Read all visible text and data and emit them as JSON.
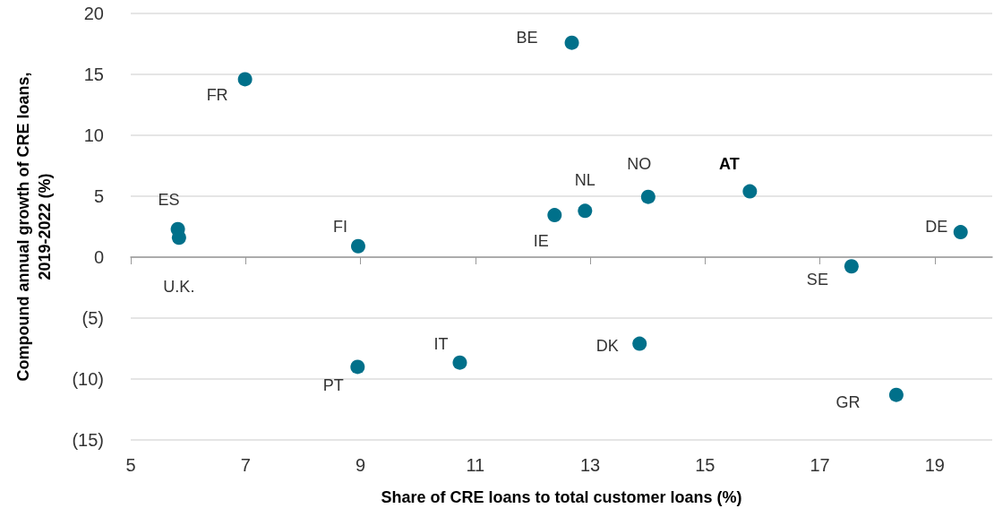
{
  "chart_data": {
    "type": "scatter",
    "xlabel": "Share of CRE loans to total customer loans (%)",
    "ylabel": "Compound annual growth of CRE loans,\n2019-2022 (%)",
    "x": [
      5.82,
      5.84,
      8.96,
      8.95,
      10.73,
      6.99,
      12.68,
      12.38,
      12.91,
      14.01,
      15.78,
      19.45,
      17.55,
      13.86,
      18.33
    ],
    "series": [
      {
        "color": "#00708a",
        "values": [
          2.3,
          1.6,
          0.9,
          -9.0,
          -8.65,
          14.6,
          17.6,
          3.45,
          3.8,
          4.95,
          5.4,
          2.05,
          -0.75,
          -7.1,
          -11.3
        ]
      }
    ],
    "xlim": [
      5,
      20
    ],
    "xticks": [
      5,
      7,
      9,
      11,
      13,
      15,
      17,
      19
    ],
    "ylim": [
      -15,
      20
    ],
    "yticks": [
      {
        "value": -15,
        "label": "(15)"
      },
      {
        "value": -10,
        "label": "(10)"
      },
      {
        "value": -5,
        "label": "(5)"
      },
      0,
      5,
      10,
      15,
      20
    ],
    "grid": "y",
    "marker": "circle",
    "annotations": [
      {
        "text": "ES",
        "x": 5.82,
        "y": 2.3
      },
      {
        "text": "U.K.",
        "x": 5.84,
        "y": 1.6
      },
      {
        "text": "FI",
        "x": 8.96,
        "y": 0.9
      },
      {
        "text": "PT",
        "x": 8.95,
        "y": -9.0
      },
      {
        "text": "IT",
        "x": 10.73,
        "y": -8.65
      },
      {
        "text": "FR",
        "x": 6.99,
        "y": 14.6
      },
      {
        "text": "BE",
        "x": 12.68,
        "y": 17.6
      },
      {
        "text": "IE",
        "x": 12.38,
        "y": 3.45
      },
      {
        "text": "NL",
        "x": 12.91,
        "y": 3.8
      },
      {
        "text": "NO",
        "x": 14.01,
        "y": 4.95
      },
      {
        "text": "AT",
        "x": 15.78,
        "y": 5.4
      },
      {
        "text": "DE",
        "x": 19.45,
        "y": 2.05
      },
      {
        "text": "SE",
        "x": 17.55,
        "y": -0.75
      },
      {
        "text": "DK",
        "x": 13.86,
        "y": -7.1
      },
      {
        "text": "GR",
        "x": 18.33,
        "y": -11.3
      }
    ]
  }
}
